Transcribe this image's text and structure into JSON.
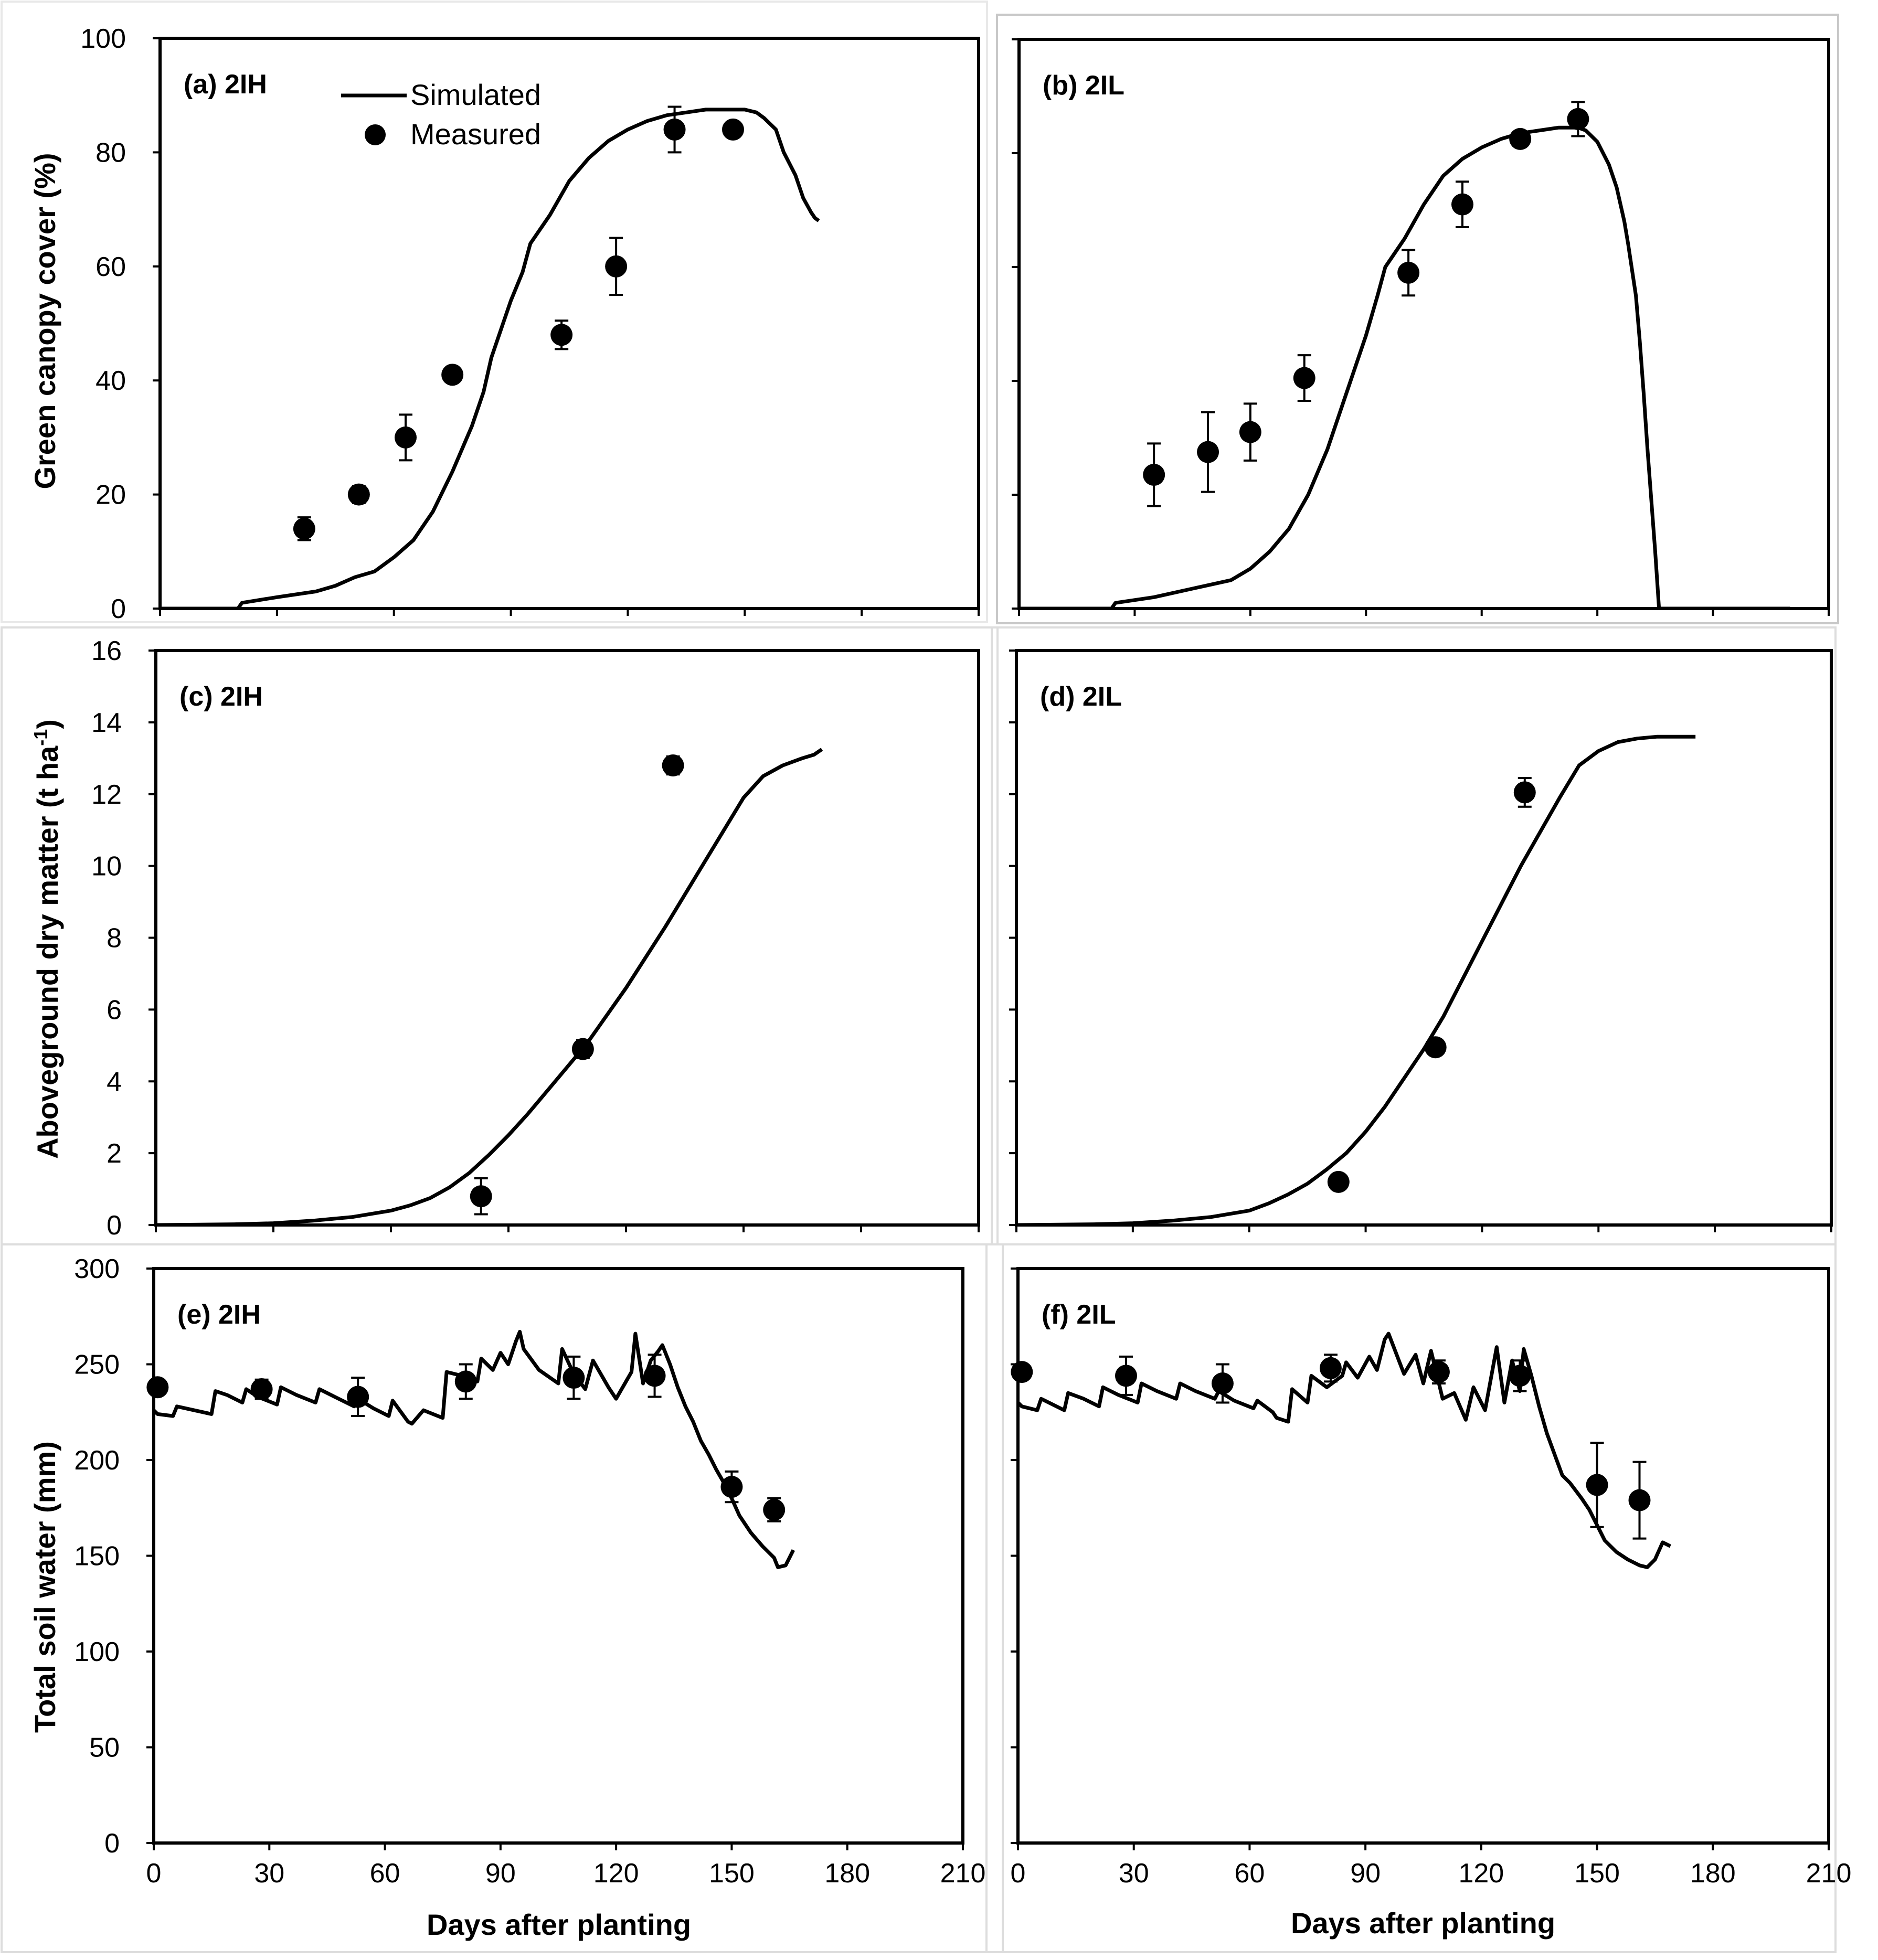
{
  "figure": {
    "x_axis_title": "Days after planting",
    "legend": {
      "simulated": "Simulated",
      "measured": "Measured"
    }
  },
  "chart_data": [
    {
      "id": "a",
      "type": "line",
      "panel_label": "(a) 2IH",
      "ylabel": "Green canopy cover (%)",
      "xlabel": "",
      "xlim": [
        0,
        210
      ],
      "ylim": [
        0,
        100
      ],
      "xticks": [
        0,
        30,
        60,
        90,
        120,
        150,
        180,
        210
      ],
      "yticks": [
        0,
        20,
        40,
        60,
        80,
        100
      ],
      "show_x_tick_labels": false,
      "show_y_tick_labels": true,
      "legend": "top-left",
      "series": [
        {
          "name": "Simulated",
          "style": "line",
          "x": [
            0,
            20,
            21,
            30,
            40,
            45,
            50,
            55,
            60,
            65,
            70,
            75,
            80,
            83,
            85,
            88,
            90,
            93,
            95,
            100,
            105,
            110,
            115,
            120,
            125,
            130,
            135,
            140,
            145,
            150,
            153,
            155,
            158,
            160,
            163,
            165,
            167,
            168,
            169
          ],
          "y": [
            0,
            0,
            1,
            2,
            3,
            4,
            5.5,
            6.5,
            9,
            12,
            17,
            24,
            32,
            38,
            44,
            50,
            54,
            59,
            64,
            69,
            75,
            79,
            82,
            84,
            85.5,
            86.5,
            87,
            87.5,
            87.5,
            87.5,
            87,
            86,
            84,
            80,
            76,
            72,
            69.5,
            68.5,
            68
          ]
        },
        {
          "name": "Measured",
          "style": "marker",
          "x": [
            37,
            51,
            63,
            75,
            103,
            117,
            132,
            147
          ],
          "y": [
            14,
            20,
            30,
            41,
            48,
            60,
            84,
            84
          ],
          "yerr": [
            2,
            1.5,
            4,
            0,
            2.5,
            5,
            4,
            0
          ]
        }
      ]
    },
    {
      "id": "b",
      "type": "line",
      "panel_label": "(b) 2IL",
      "ylabel": "",
      "xlabel": "",
      "xlim": [
        0,
        210
      ],
      "ylim": [
        0,
        100
      ],
      "xticks": [
        0,
        30,
        60,
        90,
        120,
        150,
        180,
        210
      ],
      "yticks": [
        0,
        20,
        40,
        60,
        80,
        100
      ],
      "show_x_tick_labels": false,
      "show_y_tick_labels": false,
      "series": [
        {
          "name": "Simulated",
          "style": "line",
          "x": [
            0,
            24,
            25,
            35,
            45,
            55,
            60,
            65,
            70,
            75,
            80,
            85,
            88,
            90,
            93,
            95,
            100,
            105,
            110,
            115,
            120,
            125,
            130,
            135,
            140,
            145,
            147,
            150,
            153,
            155,
            157,
            158,
            160,
            161,
            162,
            163,
            165,
            166,
            167,
            168,
            200
          ],
          "y": [
            0,
            0,
            1,
            2,
            3.5,
            5,
            7,
            10,
            14,
            20,
            28,
            38,
            44,
            48,
            55,
            60,
            65,
            71,
            76,
            79,
            81,
            82.5,
            83.5,
            84,
            84.5,
            84.5,
            84,
            82,
            78,
            74,
            68,
            64,
            55,
            47,
            38,
            28,
            10,
            0,
            0,
            0,
            0
          ]
        },
        {
          "name": "Measured",
          "style": "marker",
          "x": [
            35,
            49,
            60,
            74,
            101,
            115,
            130,
            145
          ],
          "y": [
            23.5,
            27.5,
            31,
            40.5,
            59,
            71,
            82.5,
            86
          ],
          "yerr": [
            5.5,
            7,
            5,
            4,
            4,
            4,
            0,
            3
          ]
        }
      ]
    },
    {
      "id": "c",
      "type": "line",
      "panel_label": "(c) 2IH",
      "ylabel": "Aboveground dry matter (t ha-1)",
      "xlabel": "",
      "xlim": [
        0,
        210
      ],
      "ylim": [
        0,
        16
      ],
      "xticks": [
        0,
        30,
        60,
        90,
        120,
        150,
        180,
        210
      ],
      "yticks": [
        0,
        2,
        4,
        6,
        8,
        10,
        12,
        14,
        16
      ],
      "show_x_tick_labels": false,
      "show_y_tick_labels": true,
      "series": [
        {
          "name": "Simulated",
          "style": "line",
          "x": [
            0,
            20,
            30,
            40,
            50,
            60,
            65,
            70,
            75,
            80,
            85,
            90,
            95,
            100,
            105,
            110,
            120,
            130,
            140,
            145,
            150,
            155,
            160,
            165,
            168,
            170
          ],
          "y": [
            0,
            0.02,
            0.05,
            0.12,
            0.22,
            0.4,
            0.55,
            0.75,
            1.05,
            1.45,
            1.95,
            2.5,
            3.1,
            3.75,
            4.4,
            5.05,
            6.6,
            8.3,
            10.1,
            11.0,
            11.9,
            12.5,
            12.8,
            13.0,
            13.1,
            13.25
          ]
        },
        {
          "name": "Measured",
          "style": "marker",
          "x": [
            83,
            109,
            132
          ],
          "y": [
            0.8,
            4.9,
            12.8
          ],
          "yerr": [
            0.5,
            0.25,
            0.25
          ]
        }
      ]
    },
    {
      "id": "d",
      "type": "line",
      "panel_label": "(d) 2IL",
      "ylabel": "",
      "xlabel": "",
      "xlim": [
        0,
        210
      ],
      "ylim": [
        0,
        16
      ],
      "xticks": [
        0,
        30,
        60,
        90,
        120,
        150,
        180,
        210
      ],
      "yticks": [
        0,
        2,
        4,
        6,
        8,
        10,
        12,
        14,
        16
      ],
      "show_x_tick_labels": false,
      "show_y_tick_labels": false,
      "series": [
        {
          "name": "Simulated",
          "style": "line",
          "x": [
            0,
            20,
            30,
            40,
            50,
            60,
            65,
            70,
            75,
            80,
            85,
            90,
            95,
            100,
            105,
            110,
            120,
            130,
            140,
            145,
            150,
            155,
            160,
            165,
            170,
            175
          ],
          "y": [
            0,
            0.02,
            0.05,
            0.12,
            0.22,
            0.4,
            0.6,
            0.85,
            1.15,
            1.55,
            2.0,
            2.6,
            3.3,
            4.1,
            4.9,
            5.8,
            7.9,
            10.0,
            11.9,
            12.8,
            13.2,
            13.45,
            13.55,
            13.6,
            13.6,
            13.6
          ]
        },
        {
          "name": "Measured",
          "style": "marker",
          "x": [
            83,
            108,
            131
          ],
          "y": [
            1.2,
            4.95,
            12.05
          ],
          "yerr": [
            0,
            0,
            0.4
          ]
        }
      ]
    },
    {
      "id": "e",
      "type": "line",
      "panel_label": "(e) 2IH",
      "ylabel": "Total soil water (mm)",
      "xlabel": "Days after planting",
      "xlim": [
        0,
        210
      ],
      "ylim": [
        0,
        300
      ],
      "xticks": [
        0,
        30,
        60,
        90,
        120,
        150,
        180,
        210
      ],
      "yticks": [
        0,
        50,
        100,
        150,
        200,
        250,
        300
      ],
      "show_x_tick_labels": true,
      "show_y_tick_labels": true,
      "series": [
        {
          "name": "Simulated",
          "style": "line",
          "x": [
            0,
            1,
            5,
            6,
            15,
            16,
            19,
            23,
            24,
            27,
            32,
            33,
            37,
            42,
            43,
            47,
            52,
            53,
            57,
            61,
            62,
            66,
            67,
            70,
            75,
            76,
            80,
            84,
            85,
            88,
            90,
            92,
            94,
            95,
            96,
            100,
            105,
            106,
            109,
            112,
            114,
            118,
            120,
            124,
            125,
            127,
            129,
            131,
            132,
            134,
            136,
            138,
            140,
            142,
            144,
            146,
            148,
            150,
            152,
            155,
            158,
            161,
            162,
            164,
            166
          ],
          "y": [
            226,
            224,
            223,
            228,
            224,
            236,
            234,
            230,
            237,
            233,
            229,
            238,
            234,
            230,
            237,
            233,
            228,
            232,
            227,
            223,
            231,
            220,
            219,
            226,
            222,
            246,
            244,
            241,
            253,
            247,
            256,
            250,
            262,
            267,
            258,
            247,
            240,
            258,
            245,
            237,
            252,
            238,
            232,
            246,
            266,
            240,
            252,
            257,
            260,
            250,
            238,
            228,
            220,
            210,
            203,
            195,
            188,
            180,
            171,
            162,
            155,
            149,
            144,
            145,
            153
          ]
        },
        {
          "name": "Measured",
          "style": "marker",
          "x": [
            1,
            28,
            53,
            81,
            109,
            130,
            150,
            161
          ],
          "y": [
            238,
            237,
            233,
            241,
            243,
            244,
            186,
            174
          ],
          "yerr": [
            0,
            5,
            10,
            9,
            11,
            11,
            8,
            6
          ]
        }
      ]
    },
    {
      "id": "f",
      "type": "line",
      "panel_label": "(f) 2IL",
      "ylabel": "",
      "xlabel": "Days after planting",
      "xlim": [
        0,
        210
      ],
      "ylim": [
        0,
        300
      ],
      "xticks": [
        0,
        30,
        60,
        90,
        120,
        150,
        180,
        210
      ],
      "yticks": [
        0,
        50,
        100,
        150,
        200,
        250,
        300
      ],
      "show_x_tick_labels": true,
      "show_y_tick_labels": false,
      "series": [
        {
          "name": "Simulated",
          "style": "line",
          "x": [
            0,
            1,
            5,
            6,
            12,
            13,
            17,
            21,
            22,
            26,
            31,
            32,
            36,
            41,
            42,
            46,
            51,
            52,
            56,
            61,
            62,
            66,
            67,
            70,
            71,
            75,
            76,
            80,
            84,
            85,
            88,
            91,
            93,
            95,
            96,
            100,
            103,
            105,
            107,
            110,
            113,
            116,
            118,
            121,
            124,
            126,
            128,
            130,
            131,
            133,
            135,
            137,
            139,
            141,
            143,
            146,
            148,
            150,
            152,
            155,
            158,
            161,
            163,
            165,
            167,
            169
          ],
          "y": [
            230,
            228,
            226,
            232,
            226,
            235,
            232,
            228,
            238,
            234,
            230,
            240,
            236,
            232,
            240,
            236,
            232,
            236,
            231,
            227,
            231,
            225,
            222,
            220,
            237,
            230,
            244,
            238,
            244,
            251,
            243,
            254,
            247,
            263,
            266,
            245,
            255,
            240,
            257,
            232,
            235,
            221,
            238,
            226,
            259,
            230,
            252,
            236,
            258,
            244,
            228,
            214,
            203,
            192,
            188,
            180,
            174,
            166,
            158,
            152,
            148,
            145,
            144,
            148,
            157,
            155
          ]
        },
        {
          "name": "Measured",
          "style": "marker",
          "x": [
            1,
            28,
            53,
            81,
            109,
            130,
            150,
            161
          ],
          "y": [
            246,
            244,
            240,
            248,
            246,
            244,
            187,
            179
          ],
          "yerr": [
            0,
            10,
            10,
            7,
            6,
            8,
            22,
            20
          ]
        }
      ]
    }
  ]
}
